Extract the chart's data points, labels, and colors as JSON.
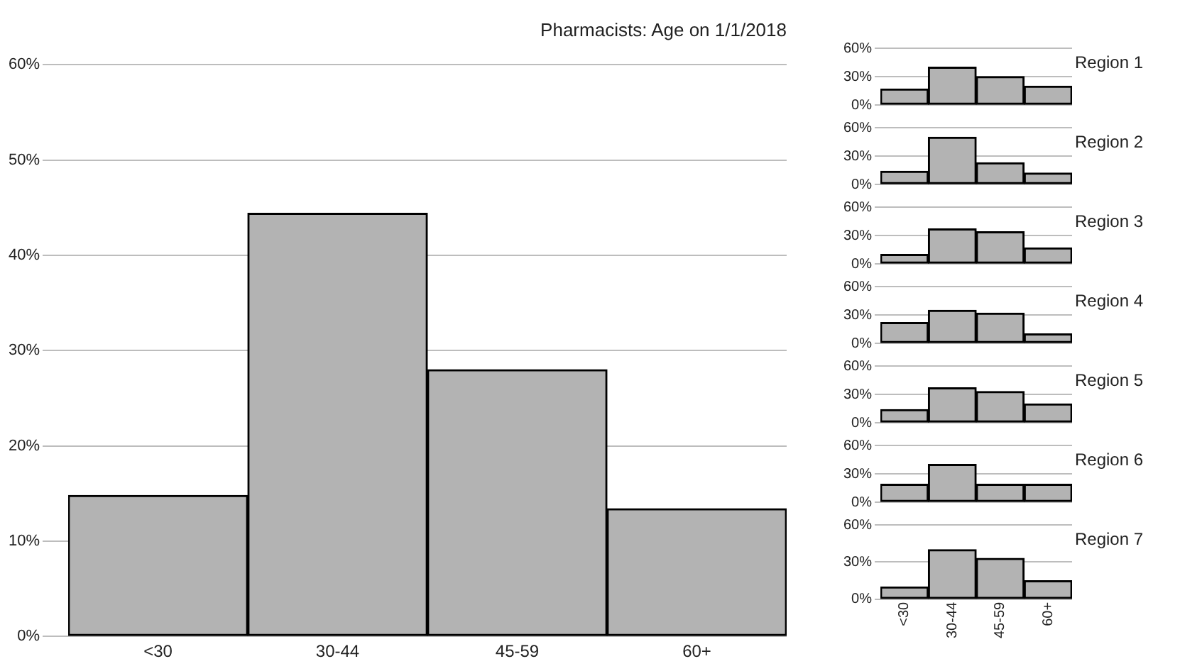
{
  "chart_data": [
    {
      "type": "bar",
      "title": "Pharmacists: Age on 1/1/2018",
      "categories": [
        "<30",
        "30-44",
        "45-59",
        "60+"
      ],
      "values": [
        14.8,
        44.4,
        28.0,
        13.4
      ],
      "color": "#b3b3b3",
      "ylim": [
        0,
        60
      ],
      "yticks": [
        {
          "value": 0,
          "label": "0%"
        },
        {
          "value": 10,
          "label": "10%"
        },
        {
          "value": 20,
          "label": "20%"
        },
        {
          "value": 30,
          "label": "30%"
        },
        {
          "value": 40,
          "label": "40%"
        },
        {
          "value": 50,
          "label": "50%"
        },
        {
          "value": 60,
          "label": "60%"
        }
      ],
      "grid": "y",
      "legend": false
    },
    {
      "type": "bar",
      "title": "Region 1",
      "categories": [
        null,
        null,
        null,
        null
      ],
      "values": [
        17,
        40,
        30,
        20
      ],
      "color": "#b3b3b3",
      "ylim": [
        0,
        60
      ],
      "yticks": [
        {
          "value": 0,
          "label": "0%"
        },
        {
          "value": 30,
          "label": "30%"
        },
        {
          "value": 60,
          "label": "60%"
        }
      ],
      "grid": "y",
      "legend": false,
      "tick_labels": "y"
    },
    {
      "type": "bar",
      "title": "Region 2",
      "categories": [
        null,
        null,
        null,
        null
      ],
      "values": [
        14,
        50,
        23,
        12
      ],
      "color": "#b3b3b3",
      "ylim": [
        0,
        60
      ],
      "yticks": [
        {
          "value": 0,
          "label": "0%"
        },
        {
          "value": 30,
          "label": "30%"
        },
        {
          "value": 60,
          "label": "60%"
        }
      ],
      "grid": "y",
      "legend": false,
      "tick_labels": "y"
    },
    {
      "type": "bar",
      "title": "Region 3",
      "categories": [
        null,
        null,
        null,
        null
      ],
      "values": [
        10,
        37,
        34,
        17
      ],
      "color": "#b3b3b3",
      "ylim": [
        0,
        60
      ],
      "yticks": [
        {
          "value": 0,
          "label": "0%"
        },
        {
          "value": 30,
          "label": "30%"
        },
        {
          "value": 60,
          "label": "60%"
        }
      ],
      "grid": "y",
      "legend": false,
      "tick_labels": "y"
    },
    {
      "type": "bar",
      "title": "Region 4",
      "categories": [
        null,
        null,
        null,
        null
      ],
      "values": [
        22,
        35,
        32,
        10
      ],
      "color": "#b3b3b3",
      "ylim": [
        0,
        60
      ],
      "yticks": [
        {
          "value": 0,
          "label": "0%"
        },
        {
          "value": 30,
          "label": "30%"
        },
        {
          "value": 60,
          "label": "60%"
        }
      ],
      "grid": "y",
      "legend": false,
      "tick_labels": "y"
    },
    {
      "type": "bar",
      "title": "Region 5",
      "categories": [
        null,
        null,
        null,
        null
      ],
      "values": [
        14,
        37,
        33,
        20
      ],
      "color": "#b3b3b3",
      "ylim": [
        0,
        60
      ],
      "yticks": [
        {
          "value": 0,
          "label": "0%"
        },
        {
          "value": 30,
          "label": "30%"
        },
        {
          "value": 60,
          "label": "60%"
        }
      ],
      "grid": "y",
      "legend": false,
      "tick_labels": "y"
    },
    {
      "type": "bar",
      "title": "Region 6",
      "categories": [
        null,
        null,
        null,
        null
      ],
      "values": [
        19,
        40,
        19,
        19
      ],
      "color": "#b3b3b3",
      "ylim": [
        0,
        60
      ],
      "yticks": [
        {
          "value": 0,
          "label": "0%"
        },
        {
          "value": 30,
          "label": "30%"
        },
        {
          "value": 60,
          "label": "60%"
        }
      ],
      "grid": "y",
      "legend": false,
      "tick_labels": "y"
    },
    {
      "type": "bar",
      "title": "Region 7",
      "categories": [
        "<30",
        "30-44",
        "45-59",
        "60+"
      ],
      "values": [
        10,
        40,
        33,
        15
      ],
      "color": "#b3b3b3",
      "ylim": [
        0,
        60
      ],
      "yticks": [
        {
          "value": 0,
          "label": "0%"
        },
        {
          "value": 30,
          "label": "30%"
        },
        {
          "value": 60,
          "label": "60%"
        }
      ],
      "grid": "y",
      "legend": false
    }
  ]
}
